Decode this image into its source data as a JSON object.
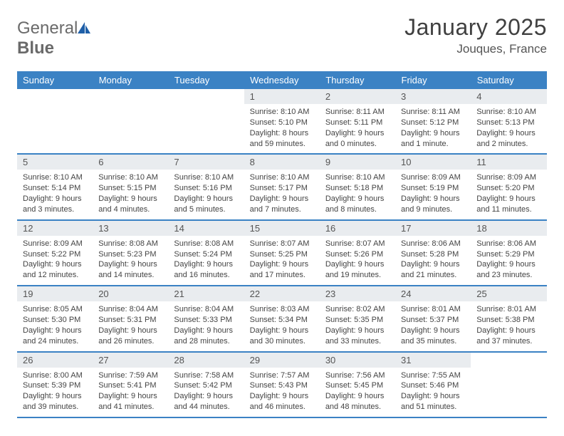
{
  "logo": {
    "word1": "General",
    "word2": "Blue"
  },
  "title": "January 2025",
  "subtitle": "Jouques, France",
  "colors": {
    "header_bg": "#3b82c4",
    "header_text": "#ffffff",
    "daynum_bg": "#e9ecef",
    "border": "#3b82c4",
    "logo_fill": "#1f5fa8"
  },
  "daynames": [
    "Sunday",
    "Monday",
    "Tuesday",
    "Wednesday",
    "Thursday",
    "Friday",
    "Saturday"
  ],
  "weeks": [
    [
      {
        "n": "",
        "sr": "",
        "ss": "",
        "dl": ""
      },
      {
        "n": "",
        "sr": "",
        "ss": "",
        "dl": ""
      },
      {
        "n": "",
        "sr": "",
        "ss": "",
        "dl": ""
      },
      {
        "n": "1",
        "sr": "Sunrise: 8:10 AM",
        "ss": "Sunset: 5:10 PM",
        "dl": "Daylight: 8 hours and 59 minutes."
      },
      {
        "n": "2",
        "sr": "Sunrise: 8:11 AM",
        "ss": "Sunset: 5:11 PM",
        "dl": "Daylight: 9 hours and 0 minutes."
      },
      {
        "n": "3",
        "sr": "Sunrise: 8:11 AM",
        "ss": "Sunset: 5:12 PM",
        "dl": "Daylight: 9 hours and 1 minute."
      },
      {
        "n": "4",
        "sr": "Sunrise: 8:10 AM",
        "ss": "Sunset: 5:13 PM",
        "dl": "Daylight: 9 hours and 2 minutes."
      }
    ],
    [
      {
        "n": "5",
        "sr": "Sunrise: 8:10 AM",
        "ss": "Sunset: 5:14 PM",
        "dl": "Daylight: 9 hours and 3 minutes."
      },
      {
        "n": "6",
        "sr": "Sunrise: 8:10 AM",
        "ss": "Sunset: 5:15 PM",
        "dl": "Daylight: 9 hours and 4 minutes."
      },
      {
        "n": "7",
        "sr": "Sunrise: 8:10 AM",
        "ss": "Sunset: 5:16 PM",
        "dl": "Daylight: 9 hours and 5 minutes."
      },
      {
        "n": "8",
        "sr": "Sunrise: 8:10 AM",
        "ss": "Sunset: 5:17 PM",
        "dl": "Daylight: 9 hours and 7 minutes."
      },
      {
        "n": "9",
        "sr": "Sunrise: 8:10 AM",
        "ss": "Sunset: 5:18 PM",
        "dl": "Daylight: 9 hours and 8 minutes."
      },
      {
        "n": "10",
        "sr": "Sunrise: 8:09 AM",
        "ss": "Sunset: 5:19 PM",
        "dl": "Daylight: 9 hours and 9 minutes."
      },
      {
        "n": "11",
        "sr": "Sunrise: 8:09 AM",
        "ss": "Sunset: 5:20 PM",
        "dl": "Daylight: 9 hours and 11 minutes."
      }
    ],
    [
      {
        "n": "12",
        "sr": "Sunrise: 8:09 AM",
        "ss": "Sunset: 5:22 PM",
        "dl": "Daylight: 9 hours and 12 minutes."
      },
      {
        "n": "13",
        "sr": "Sunrise: 8:08 AM",
        "ss": "Sunset: 5:23 PM",
        "dl": "Daylight: 9 hours and 14 minutes."
      },
      {
        "n": "14",
        "sr": "Sunrise: 8:08 AM",
        "ss": "Sunset: 5:24 PM",
        "dl": "Daylight: 9 hours and 16 minutes."
      },
      {
        "n": "15",
        "sr": "Sunrise: 8:07 AM",
        "ss": "Sunset: 5:25 PM",
        "dl": "Daylight: 9 hours and 17 minutes."
      },
      {
        "n": "16",
        "sr": "Sunrise: 8:07 AM",
        "ss": "Sunset: 5:26 PM",
        "dl": "Daylight: 9 hours and 19 minutes."
      },
      {
        "n": "17",
        "sr": "Sunrise: 8:06 AM",
        "ss": "Sunset: 5:28 PM",
        "dl": "Daylight: 9 hours and 21 minutes."
      },
      {
        "n": "18",
        "sr": "Sunrise: 8:06 AM",
        "ss": "Sunset: 5:29 PM",
        "dl": "Daylight: 9 hours and 23 minutes."
      }
    ],
    [
      {
        "n": "19",
        "sr": "Sunrise: 8:05 AM",
        "ss": "Sunset: 5:30 PM",
        "dl": "Daylight: 9 hours and 24 minutes."
      },
      {
        "n": "20",
        "sr": "Sunrise: 8:04 AM",
        "ss": "Sunset: 5:31 PM",
        "dl": "Daylight: 9 hours and 26 minutes."
      },
      {
        "n": "21",
        "sr": "Sunrise: 8:04 AM",
        "ss": "Sunset: 5:33 PM",
        "dl": "Daylight: 9 hours and 28 minutes."
      },
      {
        "n": "22",
        "sr": "Sunrise: 8:03 AM",
        "ss": "Sunset: 5:34 PM",
        "dl": "Daylight: 9 hours and 30 minutes."
      },
      {
        "n": "23",
        "sr": "Sunrise: 8:02 AM",
        "ss": "Sunset: 5:35 PM",
        "dl": "Daylight: 9 hours and 33 minutes."
      },
      {
        "n": "24",
        "sr": "Sunrise: 8:01 AM",
        "ss": "Sunset: 5:37 PM",
        "dl": "Daylight: 9 hours and 35 minutes."
      },
      {
        "n": "25",
        "sr": "Sunrise: 8:01 AM",
        "ss": "Sunset: 5:38 PM",
        "dl": "Daylight: 9 hours and 37 minutes."
      }
    ],
    [
      {
        "n": "26",
        "sr": "Sunrise: 8:00 AM",
        "ss": "Sunset: 5:39 PM",
        "dl": "Daylight: 9 hours and 39 minutes."
      },
      {
        "n": "27",
        "sr": "Sunrise: 7:59 AM",
        "ss": "Sunset: 5:41 PM",
        "dl": "Daylight: 9 hours and 41 minutes."
      },
      {
        "n": "28",
        "sr": "Sunrise: 7:58 AM",
        "ss": "Sunset: 5:42 PM",
        "dl": "Daylight: 9 hours and 44 minutes."
      },
      {
        "n": "29",
        "sr": "Sunrise: 7:57 AM",
        "ss": "Sunset: 5:43 PM",
        "dl": "Daylight: 9 hours and 46 minutes."
      },
      {
        "n": "30",
        "sr": "Sunrise: 7:56 AM",
        "ss": "Sunset: 5:45 PM",
        "dl": "Daylight: 9 hours and 48 minutes."
      },
      {
        "n": "31",
        "sr": "Sunrise: 7:55 AM",
        "ss": "Sunset: 5:46 PM",
        "dl": "Daylight: 9 hours and 51 minutes."
      },
      {
        "n": "",
        "sr": "",
        "ss": "",
        "dl": ""
      }
    ]
  ]
}
